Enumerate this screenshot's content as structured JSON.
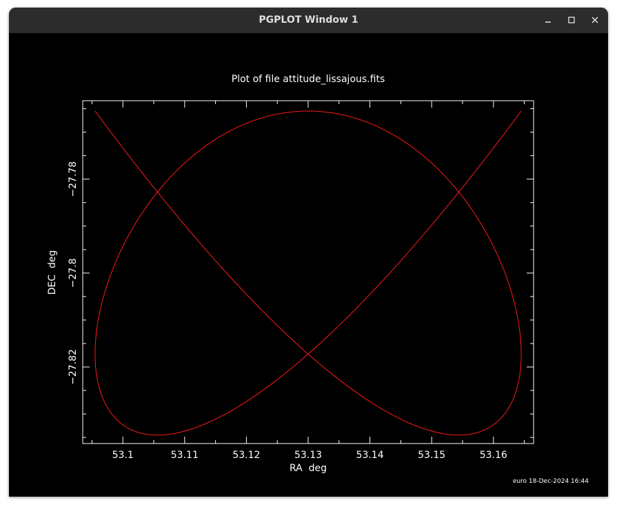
{
  "window": {
    "title": "PGPLOT Window 1",
    "controls": {
      "minimize_icon": "minimize-icon",
      "maximize_icon": "maximize-icon",
      "close_icon": "close-icon"
    }
  },
  "footer_stamp": "euro 18-Dec-2024 16:44",
  "colors": {
    "background": "#000000",
    "axes": "#ffffff",
    "curve": "#ff1a1a",
    "titlebar": "#2c2c2c"
  },
  "chart_data": {
    "type": "line",
    "title": "Plot of file attitude_lissajous.fits",
    "xlabel": "RA  deg",
    "ylabel": "DEC  deg",
    "xlim": [
      53.0935,
      53.1665
    ],
    "ylim": [
      -27.8363,
      -27.7633
    ],
    "x_ticks": [
      53.1,
      53.11,
      53.12,
      53.13,
      53.14,
      53.15,
      53.16
    ],
    "x_tick_labels": [
      "53.1",
      "53.11",
      "53.12",
      "53.13",
      "53.14",
      "53.15",
      "53.16"
    ],
    "y_ticks": [
      -27.78,
      -27.8,
      -27.82
    ],
    "y_tick_labels": [
      "−27.78",
      "−27.8",
      "−27.82"
    ],
    "grid": false,
    "series": [
      {
        "curve": "lissajous",
        "center": [
          53.13,
          -27.8
        ],
        "amplitude": [
          0.0345,
          0.0345
        ],
        "frequency_ratio": [
          3,
          4
        ],
        "phase_y": 1.5708
      }
    ]
  }
}
